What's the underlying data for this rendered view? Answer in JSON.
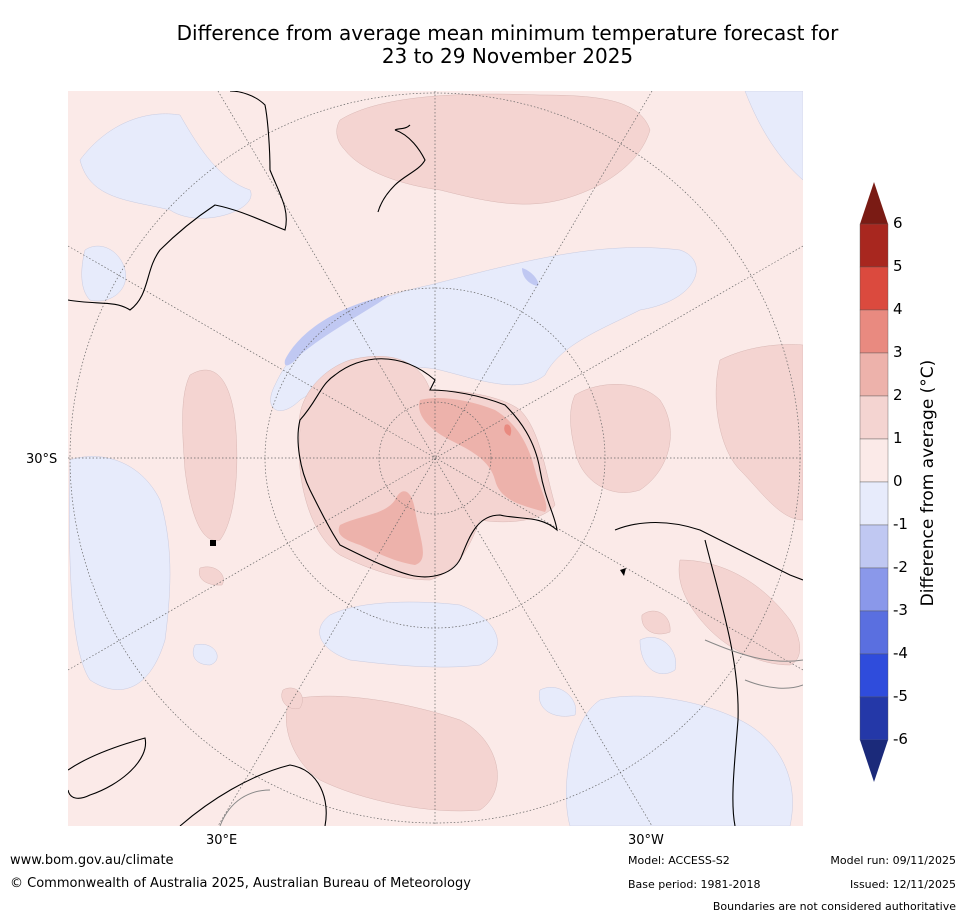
{
  "title": {
    "line1": "Difference from average mean minimum temperature forecast for",
    "line2": "23 to 29 November 2025"
  },
  "map": {
    "projection_labels": {
      "lat": "30°S",
      "lon_east": "30°E",
      "lon_west": "30°W"
    }
  },
  "colorbar": {
    "title": "Difference from average (°C)",
    "ticks": [
      "6",
      "5",
      "4",
      "3",
      "2",
      "1",
      "0",
      "-1",
      "-2",
      "-3",
      "-4",
      "-5",
      "-6"
    ],
    "colors": {
      "gt6": "#7a1b14",
      "5to6": "#a8271f",
      "4to5": "#db4a3e",
      "3to4": "#e98a80",
      "2to3": "#edb2ab",
      "1to2": "#f4d4d1",
      "0to1": "#fbeae8",
      "m1to0": "#e7ebfb",
      "m2tom1": "#c0c8f2",
      "m3tom2": "#8a98ea",
      "m4tom3": "#5a6fe0",
      "m5tom4": "#2f4cdc",
      "m6tom5": "#2438a8",
      "ltm6": "#1b2a7a"
    }
  },
  "footer": {
    "url": "www.bom.gov.au/climate",
    "copyright": "© Commonwealth of Australia 2025, Australian Bureau of Meteorology",
    "model": "Model: ACCESS-S2",
    "base_period": "Base period: 1981-2018",
    "model_run": "Model run: 09/11/2025",
    "issued": "Issued: 12/11/2025",
    "boundaries": "Boundaries are not considered authoritative"
  }
}
